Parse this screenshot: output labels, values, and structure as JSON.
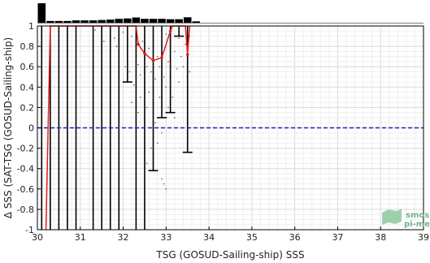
{
  "chart_data": {
    "type": "scatter",
    "title": "",
    "xlabel": "TSG (GOSUD-Sailing-ship) SSS",
    "ylabel": "Δ SSS (SAT-TSG (GOSUD-Sailing-ship)",
    "xlim": [
      30,
      39
    ],
    "ylim": [
      -1,
      1
    ],
    "grid": true,
    "x_ticks": [
      30,
      31,
      32,
      33,
      34,
      35,
      36,
      37,
      38,
      39
    ],
    "y_ticks": [
      -1,
      -0.8,
      -0.6,
      -0.4,
      -0.2,
      0,
      0.2,
      0.4,
      0.6,
      0.8,
      1
    ],
    "reference_line": {
      "y": 0,
      "style": "dashed",
      "color": "#1f1fb4"
    },
    "histogram_counts": [
      {
        "x": 30.1,
        "count": 1.0
      },
      {
        "x": 30.3,
        "count": 0.09
      },
      {
        "x": 30.5,
        "count": 0.09
      },
      {
        "x": 30.7,
        "count": 0.09
      },
      {
        "x": 30.9,
        "count": 0.12
      },
      {
        "x": 31.1,
        "count": 0.12
      },
      {
        "x": 31.3,
        "count": 0.12
      },
      {
        "x": 31.5,
        "count": 0.14
      },
      {
        "x": 31.7,
        "count": 0.16
      },
      {
        "x": 31.9,
        "count": 0.2
      },
      {
        "x": 32.1,
        "count": 0.22
      },
      {
        "x": 32.3,
        "count": 0.27
      },
      {
        "x": 32.5,
        "count": 0.2
      },
      {
        "x": 32.7,
        "count": 0.2
      },
      {
        "x": 32.9,
        "count": 0.2
      },
      {
        "x": 33.1,
        "count": 0.18
      },
      {
        "x": 33.3,
        "count": 0.18
      },
      {
        "x": 33.5,
        "count": 0.28
      },
      {
        "x": 33.7,
        "count": 0.07
      }
    ],
    "error_bars": [
      {
        "x": 30.1,
        "low": -1,
        "high": 1
      },
      {
        "x": 30.3,
        "low": -1,
        "high": 1
      },
      {
        "x": 30.5,
        "low": -1,
        "high": 1
      },
      {
        "x": 30.7,
        "low": -1,
        "high": 1
      },
      {
        "x": 30.9,
        "low": -1,
        "high": 1
      },
      {
        "x": 31.3,
        "low": -1,
        "high": 1
      },
      {
        "x": 31.5,
        "low": -1,
        "high": 1
      },
      {
        "x": 31.7,
        "low": -1,
        "high": 1
      },
      {
        "x": 31.9,
        "low": -1,
        "high": 1
      },
      {
        "x": 32.1,
        "low": 0.45,
        "high": 1
      },
      {
        "x": 32.3,
        "low": -1,
        "high": 1
      },
      {
        "x": 32.5,
        "low": -1,
        "high": 1
      },
      {
        "x": 32.7,
        "low": -0.42,
        "high": 1
      },
      {
        "x": 32.9,
        "low": 0.1,
        "high": 1
      },
      {
        "x": 33.1,
        "low": 0.15,
        "high": 1
      },
      {
        "x": 33.3,
        "low": 0.9,
        "high": 1
      },
      {
        "x": 33.5,
        "low": -0.24,
        "high": 1
      }
    ],
    "median_line": {
      "color": "#e41a1c",
      "points": [
        {
          "x": 30.2,
          "y": -1
        },
        {
          "x": 30.3,
          "y": 1
        },
        {
          "x": 32.3,
          "y": 1
        },
        {
          "x": 32.35,
          "y": 0.82
        },
        {
          "x": 32.5,
          "y": 0.73
        },
        {
          "x": 32.7,
          "y": 0.66
        },
        {
          "x": 32.9,
          "y": 0.69
        },
        {
          "x": 33.1,
          "y": 0.95
        },
        {
          "x": 33.15,
          "y": 1
        },
        {
          "x": 33.45,
          "y": 1
        },
        {
          "x": 33.5,
          "y": 0.72
        },
        {
          "x": 33.55,
          "y": 1
        }
      ]
    },
    "scatter_points": [
      {
        "x": 31.35,
        "y": 0.96
      },
      {
        "x": 31.5,
        "y": 0.9
      },
      {
        "x": 31.55,
        "y": 0.85
      },
      {
        "x": 31.7,
        "y": 0.93
      },
      {
        "x": 31.8,
        "y": 0.88
      },
      {
        "x": 31.85,
        "y": 0.8
      },
      {
        "x": 32.0,
        "y": 0.94
      },
      {
        "x": 32.05,
        "y": 0.6
      },
      {
        "x": 32.1,
        "y": 0.7
      },
      {
        "x": 32.15,
        "y": 0.55
      },
      {
        "x": 32.2,
        "y": 0.9
      },
      {
        "x": 32.25,
        "y": 0.42
      },
      {
        "x": 32.3,
        "y": 0.75
      },
      {
        "x": 32.35,
        "y": 0.62
      },
      {
        "x": 32.4,
        "y": 0.52
      },
      {
        "x": 32.4,
        "y": 0.3
      },
      {
        "x": 32.45,
        "y": 0.85
      },
      {
        "x": 32.5,
        "y": 0.45
      },
      {
        "x": 32.55,
        "y": 0.6
      },
      {
        "x": 32.55,
        "y": 0.2
      },
      {
        "x": 32.6,
        "y": 0.78
      },
      {
        "x": 32.6,
        "y": 0.35
      },
      {
        "x": 32.65,
        "y": 0.55
      },
      {
        "x": 32.7,
        "y": 0.9
      },
      {
        "x": 32.7,
        "y": 0.25
      },
      {
        "x": 32.75,
        "y": 0.48
      },
      {
        "x": 32.75,
        "y": 0.05
      },
      {
        "x": 32.8,
        "y": 0.7
      },
      {
        "x": 32.8,
        "y": -0.15
      },
      {
        "x": 32.85,
        "y": 0.6
      },
      {
        "x": 32.85,
        "y": 0.3
      },
      {
        "x": 32.9,
        "y": 0.82
      },
      {
        "x": 32.9,
        "y": -0.05
      },
      {
        "x": 32.95,
        "y": 0.5
      },
      {
        "x": 33.0,
        "y": 0.92
      },
      {
        "x": 33.0,
        "y": 0.4
      },
      {
        "x": 33.05,
        "y": 0.65
      },
      {
        "x": 33.05,
        "y": 0.2
      },
      {
        "x": 33.1,
        "y": 0.85
      },
      {
        "x": 33.1,
        "y": 0.52
      },
      {
        "x": 33.15,
        "y": 0.3
      },
      {
        "x": 33.2,
        "y": 0.75
      },
      {
        "x": 33.2,
        "y": 0.1
      },
      {
        "x": 33.25,
        "y": 0.58
      },
      {
        "x": 33.3,
        "y": 0.88
      },
      {
        "x": 33.3,
        "y": 0.45
      },
      {
        "x": 33.35,
        "y": 0.7
      },
      {
        "x": 33.4,
        "y": 0.6
      },
      {
        "x": 33.45,
        "y": 0.82
      },
      {
        "x": 33.5,
        "y": 0.65
      },
      {
        "x": 33.55,
        "y": 0.9
      },
      {
        "x": 33.55,
        "y": 0.55
      },
      {
        "x": 32.9,
        "y": -0.5
      },
      {
        "x": 32.95,
        "y": -0.55
      },
      {
        "x": 33.0,
        "y": -0.6
      },
      {
        "x": 32.55,
        "y": -0.35
      },
      {
        "x": 32.65,
        "y": -0.2
      },
      {
        "x": 32.5,
        "y": 0.05
      },
      {
        "x": 32.35,
        "y": 0.15
      },
      {
        "x": 32.2,
        "y": 0.25
      }
    ]
  },
  "logo": {
    "line1": "smos",
    "line2": "pi-mep"
  }
}
